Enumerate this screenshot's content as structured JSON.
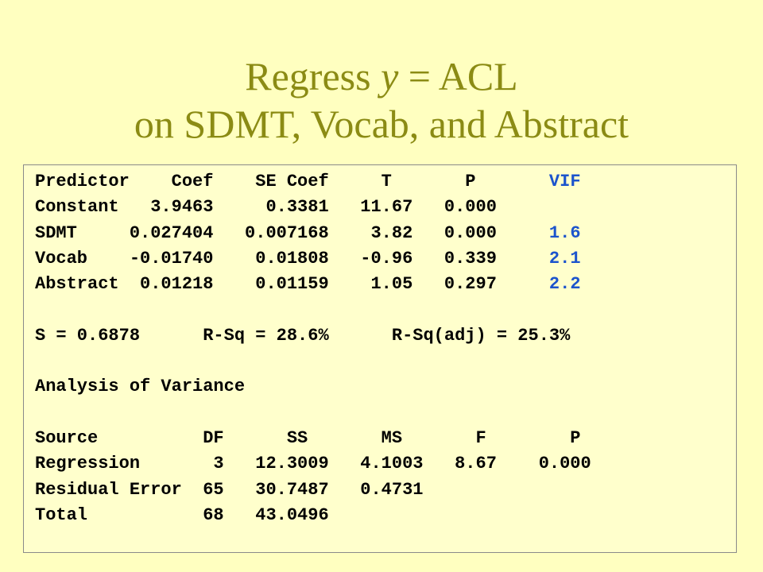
{
  "title": {
    "line1_prefix": "Regress ",
    "line1_var": "y",
    "line1_suffix": " = ACL",
    "line2": "on SDMT, Vocab, and Abstract"
  },
  "output": {
    "coef_header": "Predictor    Coef    SE Coef     T       P",
    "coef_header_vif": "       VIF",
    "rows": [
      {
        "text": "Constant   3.9463     0.3381   11.67   0.000",
        "vif": ""
      },
      {
        "text": "SDMT     0.027404   0.007168    3.82   0.000",
        "vif": "     1.6"
      },
      {
        "text": "Vocab    -0.01740    0.01808   -0.96   0.339",
        "vif": "     2.1"
      },
      {
        "text": "Abstract  0.01218    0.01159    1.05   0.297",
        "vif": "     2.2"
      }
    ],
    "summary": "S = 0.6878      R-Sq = 28.6%      R-Sq(adj) = 25.3%",
    "anova_title": "Analysis of Variance",
    "anova_header": "Source          DF      SS       MS       F        P",
    "anova_rows": [
      "Regression       3   12.3009   4.1003   8.67    0.000",
      "Residual Error  65   30.7487   0.4731",
      "Total           68   43.0496"
    ]
  }
}
